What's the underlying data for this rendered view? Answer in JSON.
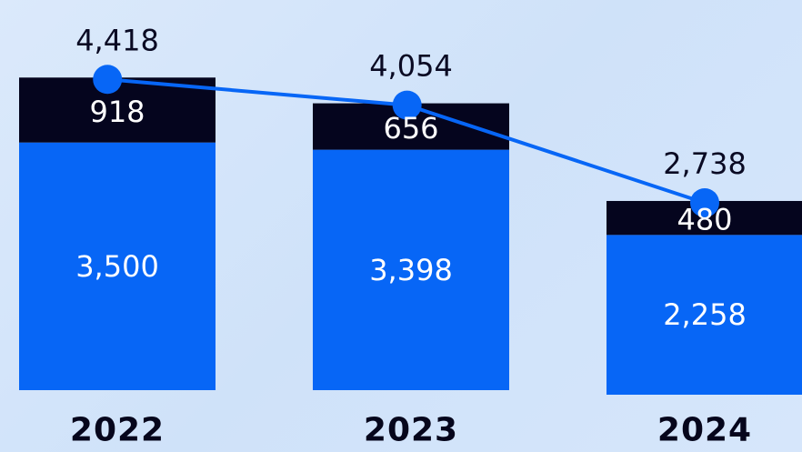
{
  "chart_data": {
    "type": "bar",
    "stacked": true,
    "categories": [
      "2022",
      "2023",
      "2024"
    ],
    "series": [
      {
        "values": [
          3500,
          3398,
          2258
        ],
        "labels": [
          "3,500",
          "3,398",
          "2,258"
        ]
      },
      {
        "values": [
          918,
          656,
          480
        ],
        "labels": [
          "918",
          "656",
          "480"
        ]
      }
    ],
    "totals": [
      4418,
      4054,
      2738
    ],
    "total_labels": [
      "4,418",
      "4,054",
      "2,738"
    ],
    "title": "",
    "xlabel": "",
    "ylabel": "",
    "ylim": [
      0,
      4800
    ],
    "grid": false,
    "legend": "none",
    "colors": {
      "bottom_segment": "#0766f6",
      "top_segment": "#05051e",
      "line": "#0766f6",
      "marker": "#0766f6",
      "total_text": "#0a0a23",
      "segment_text": "#ffffff"
    }
  }
}
